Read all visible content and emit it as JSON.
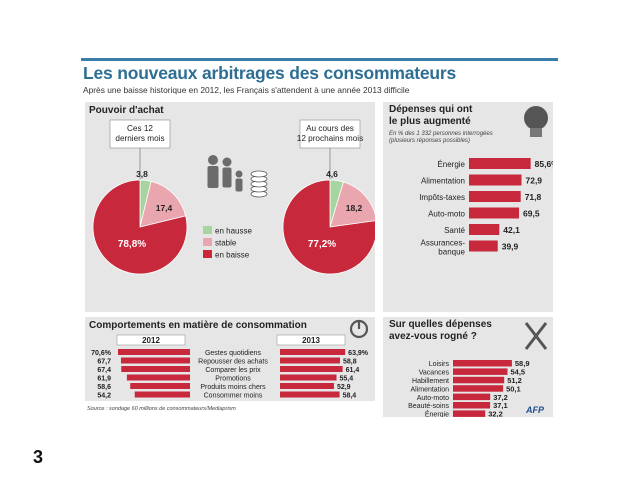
{
  "title": "Les nouveaux arbitrages des consommateurs",
  "subtitle": "Après une baisse historique en 2012, les Français s'attendent à une année 2013 difficile",
  "pouvoir": {
    "title": "Pouvoir d'achat",
    "left_caption": [
      "Ces 12",
      "derniers mois"
    ],
    "right_caption": [
      "Au cours des",
      "12 prochains mois"
    ],
    "legend": [
      "en hausse",
      "stable",
      "en baisse"
    ]
  },
  "depenses_plus": {
    "title": [
      "Dépenses qui ont",
      "le plus augmenté"
    ],
    "note": [
      "En % des 1 332 personnes interrogées",
      "(plusieurs réponses possibles)"
    ]
  },
  "comportements": {
    "title": "Comportements en matière de consommation",
    "year_left": "2012",
    "year_right": "2013"
  },
  "rogne": {
    "title": [
      "Sur quelles dépenses",
      "avez-vous rogné ?"
    ]
  },
  "source": "Source : sondage 60 millions de consommateurs/Mediaprism",
  "afp": "AFP",
  "page_number": "3",
  "colors": {
    "red": "#c8283c",
    "pink": "#e9a6ae",
    "green": "#a6d5a0",
    "panel": "#e6e6e6",
    "title_blue": "#2e6e93"
  },
  "icons": [
    "family-icon",
    "coins-icon",
    "lightbulb-icon",
    "power-icon",
    "fork-knife-icon"
  ],
  "chart_data": [
    {
      "type": "pie",
      "title": "Ces 12 derniers mois",
      "categories": [
        "en hausse",
        "stable",
        "en baisse"
      ],
      "labels": [
        "3,8",
        "17,4",
        "78,8%"
      ],
      "values": [
        3.8,
        17.4,
        78.8
      ],
      "colors": [
        "#a6d5a0",
        "#e9a6ae",
        "#c8283c"
      ]
    },
    {
      "type": "pie",
      "title": "Au cours des 12 prochains mois",
      "categories": [
        "en hausse",
        "stable",
        "en baisse"
      ],
      "labels": [
        "4,6",
        "18,2",
        "77,2%"
      ],
      "values": [
        4.6,
        18.2,
        77.2
      ],
      "colors": [
        "#a6d5a0",
        "#e9a6ae",
        "#c8283c"
      ]
    },
    {
      "type": "bar",
      "title": "Dépenses qui ont le plus augmenté",
      "categories": [
        "Énergie",
        "Alimentation",
        "Impôts-taxes",
        "Auto-moto",
        "Santé",
        "Assurances-banque"
      ],
      "category_lines": [
        [
          "Énergie"
        ],
        [
          "Alimentation"
        ],
        [
          "Impôts-taxes"
        ],
        [
          "Auto-moto"
        ],
        [
          "Santé"
        ],
        [
          "Assurances-",
          "banque"
        ]
      ],
      "labels": [
        "85,6%",
        "72,9",
        "71,8",
        "69,5",
        "42,1",
        "39,9"
      ],
      "values": [
        85.6,
        72.9,
        71.8,
        69.5,
        42.1,
        39.9
      ]
    },
    {
      "type": "bar",
      "title": "Comportements en matière de consommation",
      "categories": [
        "Gestes quotidiens",
        "Repousser des achats",
        "Comparer les prix",
        "Promotions",
        "Produits moins chers",
        "Consommer moins"
      ],
      "series": [
        {
          "name": "2012",
          "labels": [
            "70,6%",
            "67,7",
            "67,4",
            "61,9",
            "58,6",
            "54,2"
          ],
          "values": [
            70.6,
            67.7,
            67.4,
            61.9,
            58.6,
            54.2
          ]
        },
        {
          "name": "2013",
          "labels": [
            "63,9%",
            "58,8",
            "61,4",
            "55,4",
            "52,9",
            "58,4"
          ],
          "values": [
            63.9,
            58.8,
            61.4,
            55.4,
            52.9,
            58.4
          ]
        }
      ]
    },
    {
      "type": "bar",
      "title": "Sur quelles dépenses avez-vous rogné ?",
      "categories": [
        "Loisirs",
        "Vacances",
        "Habillement",
        "Alimentation",
        "Auto-moto",
        "Beauté-soins",
        "Énergie"
      ],
      "labels": [
        "58,9",
        "54,5",
        "51,2",
        "50,1",
        "37,2",
        "37,1",
        "32,2"
      ],
      "values": [
        58.9,
        54.5,
        51.2,
        50.1,
        37.2,
        37.1,
        32.2
      ]
    }
  ]
}
